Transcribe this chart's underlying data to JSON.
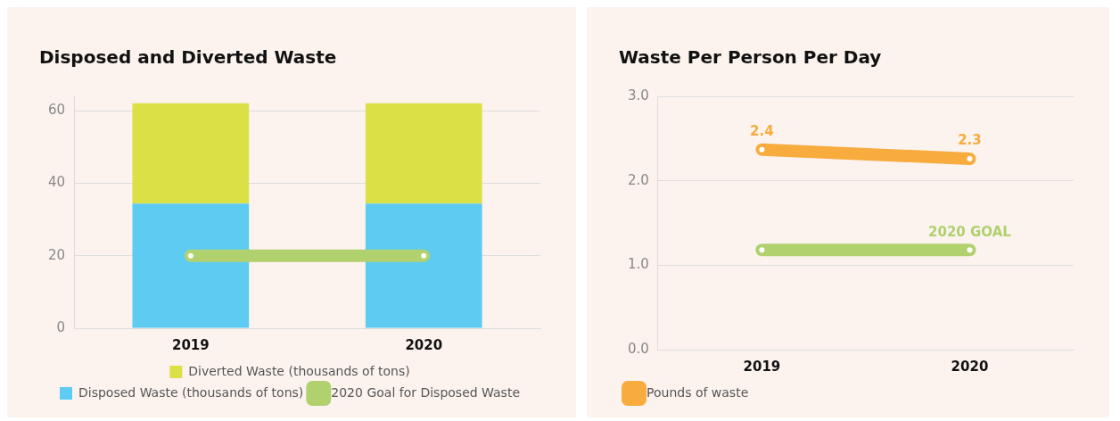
{
  "chart_data": [
    {
      "type": "bar",
      "title": "Disposed and Diverted Waste",
      "categories": [
        "2019",
        "2020"
      ],
      "stacked": true,
      "ylim": [
        0,
        64
      ],
      "yticks": [
        0,
        20,
        40,
        60
      ],
      "grid": "y",
      "legend": "bottom",
      "series": [
        {
          "name": "Disposed Waste (thousands of tons)",
          "color": "#5ecbf3",
          "values": [
            34.4,
            34.4
          ]
        },
        {
          "name": "Diverted Waste (thousands of tons)",
          "color": "#dbe046",
          "values": [
            27.7,
            27.7
          ]
        },
        {
          "name": "2020 Goal for Disposed Waste",
          "type": "line",
          "color": "#b0d16e",
          "values": [
            20,
            20
          ],
          "marker": "circle"
        }
      ]
    },
    {
      "type": "line",
      "title": "Waste Per Person Per Day",
      "categories": [
        "2019",
        "2020"
      ],
      "ylim": [
        0,
        3
      ],
      "yticks": [
        {
          "value": 0,
          "label": "0.0"
        },
        {
          "value": 1,
          "label": "1.0"
        },
        {
          "value": 2,
          "label": "2.0"
        },
        {
          "value": 3,
          "label": "3.0"
        }
      ],
      "grid": "y",
      "legend": "bottom left",
      "marker": "circle",
      "series": [
        {
          "name": "Pounds of waste",
          "color": "#f8ac3e",
          "values": [
            2.37,
            2.26
          ],
          "value_labels": [
            "2.4",
            "2.3"
          ]
        },
        {
          "color": "#b0d16e",
          "values": [
            1.18,
            1.18
          ]
        }
      ],
      "annotations": [
        {
          "text": "2020 GOAL",
          "x": "2020",
          "y": 1.18
        }
      ]
    }
  ]
}
